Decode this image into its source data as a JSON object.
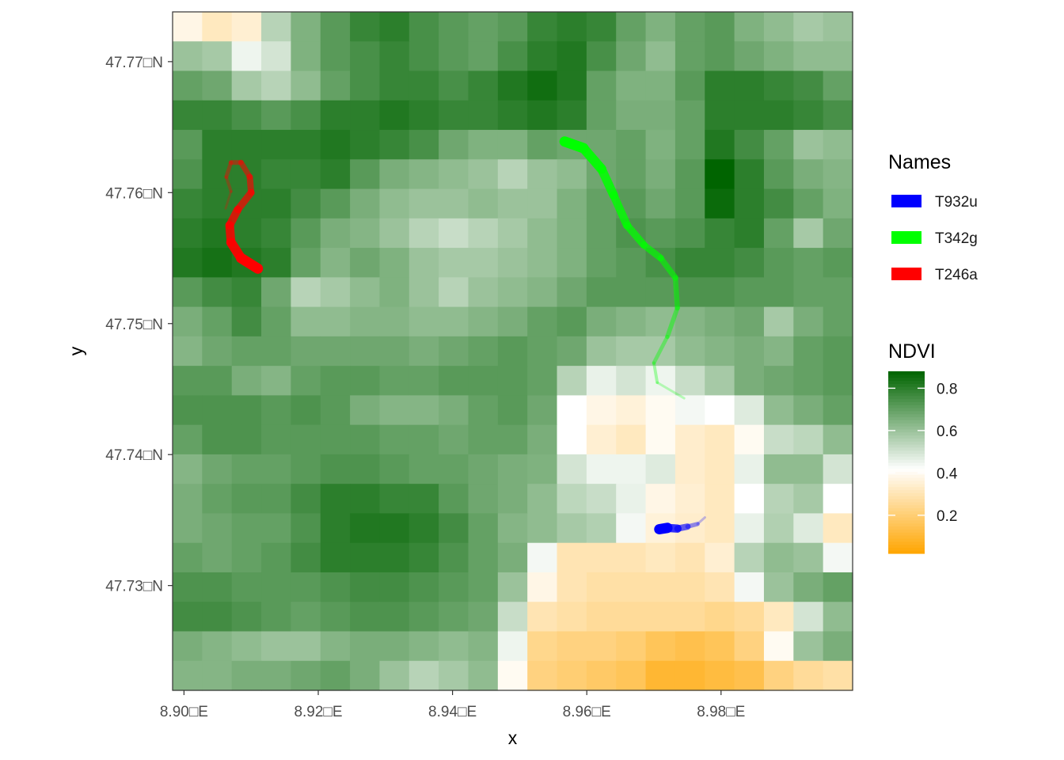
{
  "chart_data": {
    "type": "heatmap",
    "title": "",
    "xlabel": "x",
    "ylabel": "y",
    "xlim": [
      8.8983,
      8.9996
    ],
    "ylim": [
      47.722,
      47.7738
    ],
    "x_ticks": [
      {
        "value": 8.9,
        "label": "8.90□E"
      },
      {
        "value": 8.92,
        "label": "8.92□E"
      },
      {
        "value": 8.94,
        "label": "8.94□E"
      },
      {
        "value": 8.96,
        "label": "8.96□E"
      },
      {
        "value": 8.98,
        "label": "8.98□E"
      }
    ],
    "y_ticks": [
      {
        "value": 47.73,
        "label": "47.73□N"
      },
      {
        "value": 47.74,
        "label": "47.74□N"
      },
      {
        "value": 47.75,
        "label": "47.75□N"
      },
      {
        "value": 47.76,
        "label": "47.76□N"
      },
      {
        "value": 47.77,
        "label": "47.77□N"
      }
    ],
    "raster": {
      "name": "NDVI",
      "x_min": 8.8983,
      "x_max": 8.9996,
      "y_min": 47.722,
      "y_max": 47.7738,
      "ncols": 23,
      "nrows": 23,
      "values": [
        [
          0.38,
          0.32,
          0.35,
          0.55,
          0.65,
          0.72,
          0.78,
          0.8,
          0.75,
          0.72,
          0.7,
          0.72,
          0.78,
          0.8,
          0.78,
          0.7,
          0.65,
          0.7,
          0.72,
          0.65,
          0.62,
          0.58,
          0.6
        ],
        [
          0.6,
          0.58,
          0.45,
          0.5,
          0.65,
          0.72,
          0.75,
          0.78,
          0.75,
          0.72,
          0.7,
          0.75,
          0.8,
          0.82,
          0.75,
          0.68,
          0.62,
          0.7,
          0.72,
          0.68,
          0.65,
          0.62,
          0.62
        ],
        [
          0.7,
          0.68,
          0.58,
          0.55,
          0.62,
          0.7,
          0.75,
          0.78,
          0.78,
          0.75,
          0.78,
          0.82,
          0.85,
          0.82,
          0.7,
          0.65,
          0.65,
          0.72,
          0.8,
          0.8,
          0.78,
          0.76,
          0.7
        ],
        [
          0.78,
          0.78,
          0.75,
          0.72,
          0.75,
          0.8,
          0.8,
          0.82,
          0.8,
          0.78,
          0.78,
          0.8,
          0.82,
          0.8,
          0.7,
          0.66,
          0.66,
          0.7,
          0.8,
          0.8,
          0.8,
          0.78,
          0.75
        ],
        [
          0.72,
          0.8,
          0.8,
          0.8,
          0.8,
          0.82,
          0.8,
          0.78,
          0.75,
          0.68,
          0.65,
          0.65,
          0.7,
          0.68,
          0.68,
          0.7,
          0.65,
          0.7,
          0.82,
          0.76,
          0.7,
          0.6,
          0.62
        ],
        [
          0.74,
          0.8,
          0.8,
          0.78,
          0.78,
          0.8,
          0.72,
          0.66,
          0.64,
          0.62,
          0.6,
          0.55,
          0.6,
          0.62,
          0.68,
          0.7,
          0.66,
          0.72,
          0.88,
          0.8,
          0.72,
          0.66,
          0.64
        ],
        [
          0.78,
          0.8,
          0.8,
          0.8,
          0.76,
          0.72,
          0.66,
          0.62,
          0.6,
          0.6,
          0.62,
          0.6,
          0.6,
          0.65,
          0.7,
          0.72,
          0.68,
          0.72,
          0.86,
          0.8,
          0.76,
          0.7,
          0.65
        ],
        [
          0.8,
          0.82,
          0.8,
          0.78,
          0.72,
          0.66,
          0.64,
          0.6,
          0.55,
          0.52,
          0.55,
          0.58,
          0.62,
          0.65,
          0.7,
          0.74,
          0.72,
          0.74,
          0.78,
          0.8,
          0.7,
          0.58,
          0.68
        ],
        [
          0.82,
          0.84,
          0.82,
          0.8,
          0.7,
          0.64,
          0.68,
          0.65,
          0.6,
          0.58,
          0.58,
          0.6,
          0.62,
          0.65,
          0.7,
          0.72,
          0.75,
          0.78,
          0.78,
          0.76,
          0.72,
          0.7,
          0.72
        ],
        [
          0.72,
          0.76,
          0.78,
          0.68,
          0.55,
          0.58,
          0.62,
          0.65,
          0.6,
          0.55,
          0.6,
          0.62,
          0.64,
          0.68,
          0.72,
          0.72,
          0.72,
          0.74,
          0.74,
          0.72,
          0.72,
          0.7,
          0.7
        ],
        [
          0.66,
          0.7,
          0.76,
          0.7,
          0.62,
          0.62,
          0.64,
          0.64,
          0.62,
          0.62,
          0.64,
          0.66,
          0.7,
          0.72,
          0.66,
          0.64,
          0.62,
          0.64,
          0.66,
          0.68,
          0.58,
          0.66,
          0.7
        ],
        [
          0.64,
          0.68,
          0.7,
          0.7,
          0.68,
          0.68,
          0.68,
          0.68,
          0.66,
          0.68,
          0.7,
          0.72,
          0.7,
          0.68,
          0.6,
          0.58,
          0.58,
          0.62,
          0.64,
          0.66,
          0.64,
          0.7,
          0.72
        ],
        [
          0.72,
          0.72,
          0.66,
          0.64,
          0.7,
          0.72,
          0.72,
          0.7,
          0.7,
          0.72,
          0.72,
          0.72,
          0.7,
          0.55,
          0.46,
          0.5,
          0.45,
          0.52,
          0.58,
          0.66,
          0.68,
          0.7,
          0.72
        ],
        [
          0.74,
          0.74,
          0.74,
          0.72,
          0.74,
          0.72,
          0.66,
          0.64,
          0.64,
          0.66,
          0.7,
          0.72,
          0.68,
          0.42,
          0.38,
          0.36,
          0.4,
          0.44,
          0.42,
          0.48,
          0.62,
          0.66,
          0.7
        ],
        [
          0.7,
          0.74,
          0.74,
          0.72,
          0.72,
          0.72,
          0.72,
          0.7,
          0.7,
          0.68,
          0.7,
          0.7,
          0.66,
          0.42,
          0.35,
          0.32,
          0.4,
          0.34,
          0.32,
          0.4,
          0.52,
          0.54,
          0.62
        ],
        [
          0.64,
          0.68,
          0.7,
          0.7,
          0.72,
          0.74,
          0.74,
          0.72,
          0.7,
          0.7,
          0.68,
          0.66,
          0.65,
          0.5,
          0.45,
          0.45,
          0.48,
          0.34,
          0.32,
          0.46,
          0.62,
          0.62,
          0.5
        ],
        [
          0.66,
          0.7,
          0.72,
          0.72,
          0.76,
          0.8,
          0.8,
          0.78,
          0.78,
          0.72,
          0.68,
          0.66,
          0.62,
          0.54,
          0.52,
          0.46,
          0.38,
          0.35,
          0.32,
          0.42,
          0.55,
          0.58,
          0.42
        ],
        [
          0.66,
          0.68,
          0.7,
          0.7,
          0.74,
          0.8,
          0.82,
          0.82,
          0.8,
          0.76,
          0.7,
          0.64,
          0.62,
          0.58,
          0.56,
          0.44,
          0.36,
          0.34,
          0.32,
          0.46,
          0.56,
          0.48,
          0.32
        ],
        [
          0.7,
          0.68,
          0.7,
          0.72,
          0.76,
          0.8,
          0.8,
          0.8,
          0.78,
          0.74,
          0.7,
          0.66,
          0.44,
          0.3,
          0.3,
          0.3,
          0.32,
          0.3,
          0.35,
          0.55,
          0.62,
          0.6,
          0.44
        ],
        [
          0.74,
          0.74,
          0.72,
          0.72,
          0.72,
          0.74,
          0.76,
          0.76,
          0.74,
          0.72,
          0.7,
          0.6,
          0.38,
          0.3,
          0.28,
          0.28,
          0.28,
          0.28,
          0.3,
          0.44,
          0.6,
          0.66,
          0.7
        ],
        [
          0.76,
          0.76,
          0.74,
          0.72,
          0.7,
          0.72,
          0.74,
          0.74,
          0.72,
          0.7,
          0.68,
          0.52,
          0.3,
          0.28,
          0.26,
          0.26,
          0.26,
          0.26,
          0.24,
          0.26,
          0.32,
          0.5,
          0.62
        ],
        [
          0.66,
          0.64,
          0.62,
          0.6,
          0.6,
          0.64,
          0.66,
          0.66,
          0.64,
          0.62,
          0.64,
          0.45,
          0.24,
          0.22,
          0.22,
          0.2,
          0.16,
          0.14,
          0.16,
          0.22,
          0.4,
          0.6,
          0.66
        ],
        [
          0.64,
          0.64,
          0.66,
          0.66,
          0.68,
          0.7,
          0.66,
          0.6,
          0.55,
          0.58,
          0.62,
          0.4,
          0.22,
          0.2,
          0.18,
          0.16,
          0.1,
          0.1,
          0.12,
          0.14,
          0.22,
          0.26,
          0.28
        ]
      ]
    },
    "tracks": [
      {
        "name": "T932u",
        "color": "#0000ff",
        "x": [
          8.9708,
          8.972,
          8.9735,
          8.975,
          8.9765,
          8.9776
        ],
        "y": [
          47.7343,
          47.7344,
          47.73435,
          47.7345,
          47.7347,
          47.7352
        ]
      },
      {
        "name": "T342g",
        "color": "#00ff00",
        "x": [
          8.9567,
          8.9595,
          8.9622,
          8.964,
          8.966,
          8.9685,
          8.971,
          8.9732,
          8.9735,
          8.972,
          8.97,
          8.9705,
          8.9745
        ],
        "y": [
          47.7639,
          47.7634,
          47.7618,
          47.7598,
          47.7575,
          47.756,
          47.755,
          47.7535,
          47.7512,
          47.749,
          47.747,
          47.7455,
          47.7443
        ]
      },
      {
        "name": "T246a",
        "color": "#ff0000",
        "x": [
          8.911,
          8.9085,
          8.907,
          8.9068,
          8.908,
          8.91,
          8.9098,
          8.9085,
          8.907,
          8.9063,
          8.907,
          8.9062
        ],
        "y": [
          47.7542,
          47.755,
          47.7562,
          47.7575,
          47.7587,
          47.76,
          47.7612,
          47.7623,
          47.7623,
          47.7612,
          47.7601,
          47.7588
        ]
      }
    ],
    "legend_tracks": {
      "title": "Names",
      "items": [
        {
          "label": "T932u",
          "color": "#0000ff"
        },
        {
          "label": "T342g",
          "color": "#00ff00"
        },
        {
          "label": "T246a",
          "color": "#ff0000"
        }
      ]
    },
    "legend_colorbar": {
      "title": "NDVI",
      "min": 0.02,
      "max": 0.88,
      "ticks": [
        {
          "value": 0.2,
          "label": "0.2"
        },
        {
          "value": 0.4,
          "label": "0.4"
        },
        {
          "value": 0.6,
          "label": "0.6"
        },
        {
          "value": 0.8,
          "label": "0.8"
        }
      ],
      "colors": [
        "#ffa500",
        "#ffffff",
        "#006400"
      ],
      "midpoint": 0.42
    },
    "grid": false,
    "legend_position": "right"
  }
}
